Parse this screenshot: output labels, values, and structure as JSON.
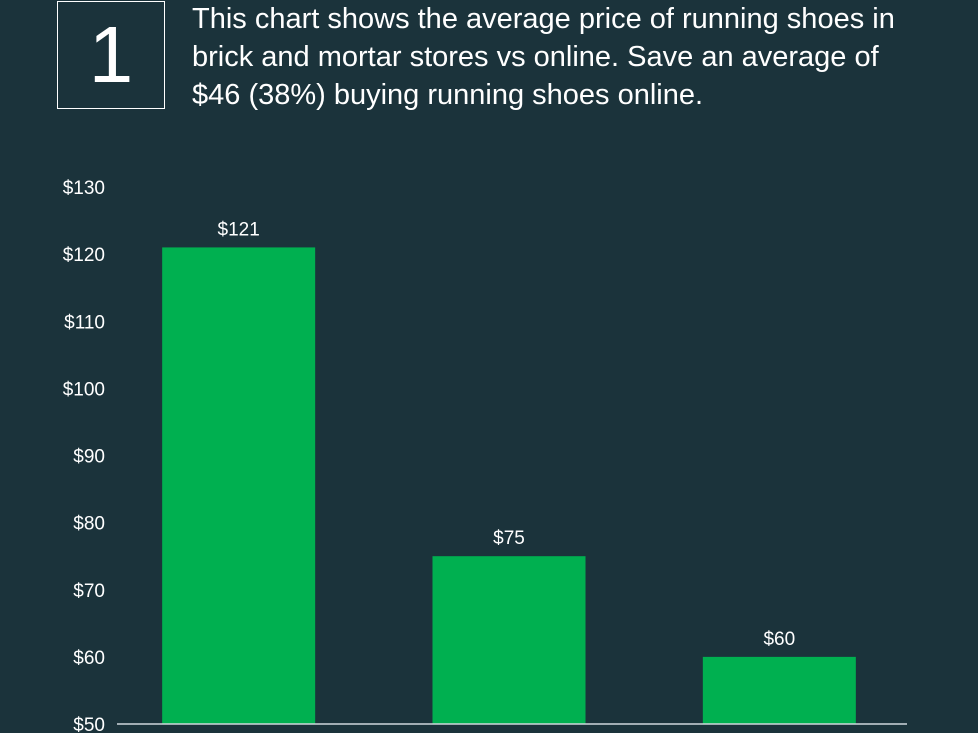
{
  "header": {
    "number": "1",
    "description": "This chart shows the average price of running shoes in brick and mortar stores vs online. Save an average of $46 (38%) buying running shoes online."
  },
  "colors": {
    "background": "#1b333b",
    "bar": "#00b050",
    "text": "#ffffff",
    "axis": "#cfd8dc"
  },
  "chart_data": {
    "type": "bar",
    "categories": [
      "",
      "",
      ""
    ],
    "values": [
      121,
      75,
      60
    ],
    "data_labels": [
      "$121",
      "$75",
      "$60"
    ],
    "title": "",
    "xlabel": "",
    "ylabel": "",
    "ylim": [
      50,
      130
    ],
    "y_ticks": [
      50,
      60,
      70,
      80,
      90,
      100,
      110,
      120,
      130
    ],
    "y_tick_labels": [
      "$50",
      "$60",
      "$70",
      "$80",
      "$90",
      "$100",
      "$110",
      "$120",
      "$130"
    ],
    "grid": false,
    "legend": "none"
  }
}
